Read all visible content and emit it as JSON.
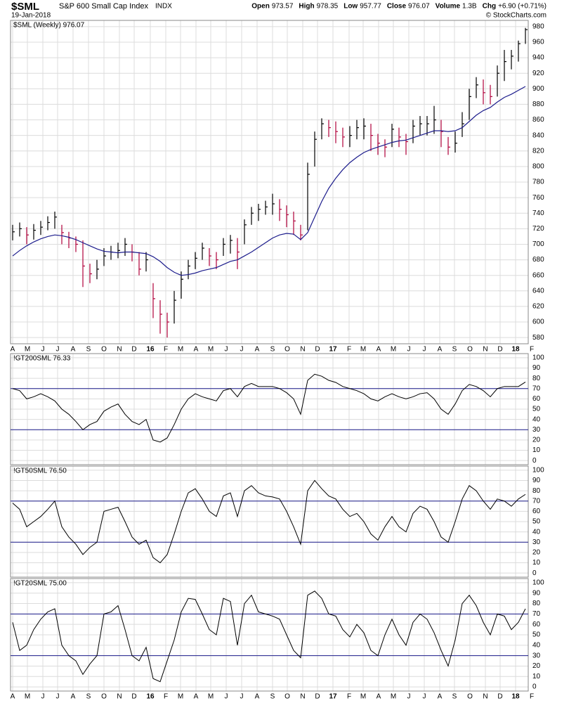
{
  "header": {
    "symbol": "$SML",
    "name": "S&P 600 Small Cap Index",
    "exchange": "INDX",
    "date": "19-Jan-2018",
    "quote": [
      {
        "label": "Open",
        "value": "973.57"
      },
      {
        "label": "High",
        "value": "978.35"
      },
      {
        "label": "Low",
        "value": "957.77"
      },
      {
        "label": "Close",
        "value": "976.07"
      },
      {
        "label": "Volume",
        "value": "1.3B"
      },
      {
        "label": "Chg",
        "value": "+6.90 (+0.71%)"
      }
    ],
    "credit": "© StockCharts.com"
  },
  "chart_data": [
    {
      "type": "ohlc",
      "title": "$SML (Weekly) 976.07",
      "xlabels": true,
      "up_color": "#000000",
      "down_color": "#b0003a",
      "xlim": [
        -0.3,
        73.4
      ],
      "ylim": [
        572,
        988
      ],
      "yticks": [
        580,
        600,
        620,
        640,
        660,
        680,
        700,
        720,
        740,
        760,
        780,
        800,
        820,
        840,
        860,
        880,
        900,
        920,
        940,
        960,
        980
      ],
      "xticks": [
        {
          "value": 0,
          "label": "A"
        },
        {
          "value": 2.1,
          "label": "M"
        },
        {
          "value": 4.3,
          "label": "J"
        },
        {
          "value": 6.4,
          "label": "J"
        },
        {
          "value": 8.6,
          "label": "A"
        },
        {
          "value": 10.8,
          "label": "S"
        },
        {
          "value": 13,
          "label": "O"
        },
        {
          "value": 15.2,
          "label": "N"
        },
        {
          "value": 17.3,
          "label": "D"
        },
        {
          "value": 19.6,
          "label": "16"
        },
        {
          "value": 21.8,
          "label": "F"
        },
        {
          "value": 23.9,
          "label": "M"
        },
        {
          "value": 26.1,
          "label": "A"
        },
        {
          "value": 28.2,
          "label": "M"
        },
        {
          "value": 30.4,
          "label": "J"
        },
        {
          "value": 32.6,
          "label": "J"
        },
        {
          "value": 34.8,
          "label": "A"
        },
        {
          "value": 37,
          "label": "S"
        },
        {
          "value": 39.1,
          "label": "O"
        },
        {
          "value": 41.3,
          "label": "N"
        },
        {
          "value": 43.4,
          "label": "D"
        },
        {
          "value": 45.6,
          "label": "17"
        },
        {
          "value": 47.9,
          "label": "F"
        },
        {
          "value": 49.9,
          "label": "M"
        },
        {
          "value": 52.1,
          "label": "A"
        },
        {
          "value": 54.2,
          "label": "M"
        },
        {
          "value": 56.4,
          "label": "J"
        },
        {
          "value": 58.6,
          "label": "J"
        },
        {
          "value": 60.8,
          "label": "A"
        },
        {
          "value": 62.9,
          "label": "S"
        },
        {
          "value": 65.1,
          "label": "O"
        },
        {
          "value": 67.3,
          "label": "N"
        },
        {
          "value": 69.4,
          "label": "D"
        },
        {
          "value": 71.6,
          "label": "18"
        },
        {
          "value": 73.9,
          "label": "F"
        }
      ],
      "high": [
        725,
        728,
        722,
        726,
        730,
        736,
        742,
        725,
        716,
        710,
        705,
        675,
        680,
        695,
        698,
        702,
        708,
        700,
        690,
        690,
        650,
        628,
        612,
        640,
        665,
        680,
        690,
        702,
        695,
        690,
        708,
        712,
        708,
        732,
        748,
        752,
        756,
        765,
        758,
        750,
        742,
        725,
        805,
        845,
        862,
        860,
        858,
        850,
        852,
        860,
        862,
        855,
        842,
        835,
        855,
        850,
        842,
        860,
        865,
        865,
        878,
        860,
        838,
        845,
        870,
        900,
        915,
        912,
        905,
        930,
        950,
        950,
        962,
        978.35
      ],
      "low": [
        705,
        710,
        700,
        706,
        712,
        718,
        720,
        700,
        695,
        690,
        645,
        650,
        655,
        672,
        680,
        682,
        685,
        678,
        660,
        665,
        605,
        585,
        580,
        598,
        630,
        655,
        668,
        680,
        672,
        668,
        685,
        688,
        668,
        700,
        725,
        730,
        738,
        738,
        730,
        722,
        712,
        705,
        718,
        800,
        835,
        838,
        830,
        825,
        825,
        835,
        835,
        820,
        815,
        812,
        825,
        825,
        815,
        830,
        840,
        840,
        842,
        825,
        815,
        818,
        838,
        860,
        888,
        880,
        880,
        890,
        910,
        925,
        935,
        957.77
      ],
      "close": [
        716,
        720,
        712,
        718,
        722,
        728,
        735,
        715,
        708,
        700,
        672,
        662,
        668,
        685,
        690,
        692,
        700,
        690,
        668,
        680,
        630,
        610,
        600,
        628,
        655,
        672,
        682,
        695,
        685,
        680,
        700,
        705,
        690,
        725,
        740,
        745,
        748,
        752,
        745,
        738,
        730,
        712,
        790,
        835,
        855,
        850,
        845,
        838,
        840,
        850,
        852,
        840,
        830,
        825,
        848,
        838,
        832,
        852,
        855,
        855,
        860,
        845,
        825,
        830,
        855,
        890,
        905,
        895,
        890,
        920,
        935,
        942,
        958,
        976.07
      ],
      "ma": {
        "color": "#1c1c8c",
        "values": [
          685,
          692,
          698,
          703,
          707,
          710,
          712,
          711,
          709,
          706,
          702,
          698,
          694,
          691,
          690,
          689,
          690,
          690,
          689,
          688,
          684,
          678,
          670,
          664,
          660,
          661,
          663,
          666,
          668,
          670,
          674,
          678,
          680,
          685,
          690,
          696,
          702,
          708,
          712,
          714,
          713,
          706,
          715,
          735,
          755,
          772,
          785,
          796,
          805,
          812,
          818,
          822,
          825,
          828,
          831,
          833,
          834,
          837,
          840,
          843,
          846,
          846,
          845,
          846,
          850,
          858,
          866,
          872,
          876,
          883,
          889,
          893,
          898,
          903
        ]
      }
    },
    {
      "type": "line",
      "title": "!GT200SML 76.33",
      "xlabels": false,
      "color": "#000000",
      "hlines": [
        30,
        70
      ],
      "hline_color": "#1c1c8c",
      "xlim": [
        -0.3,
        73.4
      ],
      "ylim": [
        -4,
        104
      ],
      "yticks": [
        0,
        10,
        20,
        30,
        40,
        50,
        60,
        70,
        80,
        90,
        100
      ],
      "xticks": [
        {
          "value": 0,
          "label": "A"
        },
        {
          "value": 2.1,
          "label": "M"
        },
        {
          "value": 4.3,
          "label": "J"
        },
        {
          "value": 6.4,
          "label": "J"
        },
        {
          "value": 8.6,
          "label": "A"
        },
        {
          "value": 10.8,
          "label": "S"
        },
        {
          "value": 13,
          "label": "O"
        },
        {
          "value": 15.2,
          "label": "N"
        },
        {
          "value": 17.3,
          "label": "D"
        },
        {
          "value": 19.6,
          "label": "16"
        },
        {
          "value": 21.8,
          "label": "F"
        },
        {
          "value": 23.9,
          "label": "M"
        },
        {
          "value": 26.1,
          "label": "A"
        },
        {
          "value": 28.2,
          "label": "M"
        },
        {
          "value": 30.4,
          "label": "J"
        },
        {
          "value": 32.6,
          "label": "J"
        },
        {
          "value": 34.8,
          "label": "A"
        },
        {
          "value": 37,
          "label": "S"
        },
        {
          "value": 39.1,
          "label": "O"
        },
        {
          "value": 41.3,
          "label": "N"
        },
        {
          "value": 43.4,
          "label": "D"
        },
        {
          "value": 45.6,
          "label": "17"
        },
        {
          "value": 47.9,
          "label": "F"
        },
        {
          "value": 49.9,
          "label": "M"
        },
        {
          "value": 52.1,
          "label": "A"
        },
        {
          "value": 54.2,
          "label": "M"
        },
        {
          "value": 56.4,
          "label": "J"
        },
        {
          "value": 58.6,
          "label": "J"
        },
        {
          "value": 60.8,
          "label": "A"
        },
        {
          "value": 62.9,
          "label": "S"
        },
        {
          "value": 65.1,
          "label": "O"
        },
        {
          "value": 67.3,
          "label": "N"
        },
        {
          "value": 69.4,
          "label": "D"
        },
        {
          "value": 71.6,
          "label": "18"
        },
        {
          "value": 73.9,
          "label": "F"
        }
      ],
      "values": [
        70,
        68,
        60,
        62,
        65,
        62,
        58,
        50,
        45,
        38,
        30,
        35,
        38,
        48,
        52,
        55,
        45,
        38,
        35,
        40,
        20,
        18,
        22,
        35,
        50,
        60,
        65,
        62,
        60,
        58,
        68,
        70,
        62,
        72,
        75,
        72,
        72,
        72,
        70,
        66,
        60,
        45,
        78,
        84,
        82,
        78,
        76,
        72,
        70,
        68,
        65,
        60,
        58,
        62,
        65,
        62,
        60,
        62,
        65,
        66,
        60,
        50,
        45,
        55,
        68,
        74,
        72,
        68,
        62,
        70,
        72,
        72,
        72,
        76.33
      ]
    },
    {
      "type": "line",
      "title": "!GT50SML 76.50",
      "xlabels": false,
      "color": "#000000",
      "hlines": [
        30,
        70
      ],
      "hline_color": "#1c1c8c",
      "xlim": [
        -0.3,
        73.4
      ],
      "ylim": [
        -4,
        104
      ],
      "yticks": [
        0,
        10,
        20,
        30,
        40,
        50,
        60,
        70,
        80,
        90,
        100
      ],
      "xticks": [
        {
          "value": 0,
          "label": "A"
        },
        {
          "value": 2.1,
          "label": "M"
        },
        {
          "value": 4.3,
          "label": "J"
        },
        {
          "value": 6.4,
          "label": "J"
        },
        {
          "value": 8.6,
          "label": "A"
        },
        {
          "value": 10.8,
          "label": "S"
        },
        {
          "value": 13,
          "label": "O"
        },
        {
          "value": 15.2,
          "label": "N"
        },
        {
          "value": 17.3,
          "label": "D"
        },
        {
          "value": 19.6,
          "label": "16"
        },
        {
          "value": 21.8,
          "label": "F"
        },
        {
          "value": 23.9,
          "label": "M"
        },
        {
          "value": 26.1,
          "label": "A"
        },
        {
          "value": 28.2,
          "label": "M"
        },
        {
          "value": 30.4,
          "label": "J"
        },
        {
          "value": 32.6,
          "label": "J"
        },
        {
          "value": 34.8,
          "label": "A"
        },
        {
          "value": 37,
          "label": "S"
        },
        {
          "value": 39.1,
          "label": "O"
        },
        {
          "value": 41.3,
          "label": "N"
        },
        {
          "value": 43.4,
          "label": "D"
        },
        {
          "value": 45.6,
          "label": "17"
        },
        {
          "value": 47.9,
          "label": "F"
        },
        {
          "value": 49.9,
          "label": "M"
        },
        {
          "value": 52.1,
          "label": "A"
        },
        {
          "value": 54.2,
          "label": "M"
        },
        {
          "value": 56.4,
          "label": "J"
        },
        {
          "value": 58.6,
          "label": "J"
        },
        {
          "value": 60.8,
          "label": "A"
        },
        {
          "value": 62.9,
          "label": "S"
        },
        {
          "value": 65.1,
          "label": "O"
        },
        {
          "value": 67.3,
          "label": "N"
        },
        {
          "value": 69.4,
          "label": "D"
        },
        {
          "value": 71.6,
          "label": "18"
        },
        {
          "value": 73.9,
          "label": "F"
        }
      ],
      "values": [
        68,
        62,
        45,
        50,
        55,
        62,
        70,
        45,
        35,
        28,
        18,
        25,
        30,
        60,
        62,
        64,
        50,
        35,
        28,
        32,
        15,
        10,
        18,
        38,
        60,
        78,
        82,
        72,
        60,
        55,
        75,
        78,
        55,
        80,
        85,
        78,
        75,
        74,
        72,
        60,
        45,
        28,
        80,
        90,
        82,
        75,
        72,
        62,
        55,
        58,
        50,
        38,
        32,
        45,
        55,
        45,
        40,
        58,
        65,
        62,
        50,
        35,
        30,
        50,
        72,
        85,
        80,
        70,
        62,
        72,
        70,
        65,
        72,
        76.5
      ]
    },
    {
      "type": "line",
      "title": "!GT20SML 75.00",
      "xlabels": true,
      "color": "#000000",
      "hlines": [
        30,
        70
      ],
      "hline_color": "#1c1c8c",
      "xlim": [
        -0.3,
        73.4
      ],
      "ylim": [
        -4,
        104
      ],
      "yticks": [
        0,
        10,
        20,
        30,
        40,
        50,
        60,
        70,
        80,
        90,
        100
      ],
      "xticks": [
        {
          "value": 0,
          "label": "A"
        },
        {
          "value": 2.1,
          "label": "M"
        },
        {
          "value": 4.3,
          "label": "J"
        },
        {
          "value": 6.4,
          "label": "J"
        },
        {
          "value": 8.6,
          "label": "A"
        },
        {
          "value": 10.8,
          "label": "S"
        },
        {
          "value": 13,
          "label": "O"
        },
        {
          "value": 15.2,
          "label": "N"
        },
        {
          "value": 17.3,
          "label": "D"
        },
        {
          "value": 19.6,
          "label": "16"
        },
        {
          "value": 21.8,
          "label": "F"
        },
        {
          "value": 23.9,
          "label": "M"
        },
        {
          "value": 26.1,
          "label": "A"
        },
        {
          "value": 28.2,
          "label": "M"
        },
        {
          "value": 30.4,
          "label": "J"
        },
        {
          "value": 32.6,
          "label": "J"
        },
        {
          "value": 34.8,
          "label": "A"
        },
        {
          "value": 37,
          "label": "S"
        },
        {
          "value": 39.1,
          "label": "O"
        },
        {
          "value": 41.3,
          "label": "N"
        },
        {
          "value": 43.4,
          "label": "D"
        },
        {
          "value": 45.6,
          "label": "17"
        },
        {
          "value": 47.9,
          "label": "F"
        },
        {
          "value": 49.9,
          "label": "M"
        },
        {
          "value": 52.1,
          "label": "A"
        },
        {
          "value": 54.2,
          "label": "M"
        },
        {
          "value": 56.4,
          "label": "J"
        },
        {
          "value": 58.6,
          "label": "J"
        },
        {
          "value": 60.8,
          "label": "A"
        },
        {
          "value": 62.9,
          "label": "S"
        },
        {
          "value": 65.1,
          "label": "O"
        },
        {
          "value": 67.3,
          "label": "N"
        },
        {
          "value": 69.4,
          "label": "D"
        },
        {
          "value": 71.6,
          "label": "18"
        },
        {
          "value": 73.9,
          "label": "F"
        }
      ],
      "values": [
        62,
        35,
        40,
        55,
        65,
        72,
        75,
        40,
        30,
        25,
        12,
        22,
        30,
        70,
        72,
        78,
        55,
        30,
        25,
        38,
        8,
        5,
        25,
        45,
        72,
        85,
        84,
        70,
        55,
        50,
        85,
        82,
        40,
        80,
        88,
        72,
        70,
        68,
        65,
        50,
        35,
        28,
        88,
        92,
        85,
        70,
        68,
        55,
        48,
        60,
        52,
        35,
        30,
        50,
        65,
        50,
        40,
        62,
        70,
        65,
        52,
        35,
        20,
        45,
        80,
        88,
        78,
        62,
        50,
        70,
        68,
        55,
        62,
        75
      ]
    }
  ]
}
